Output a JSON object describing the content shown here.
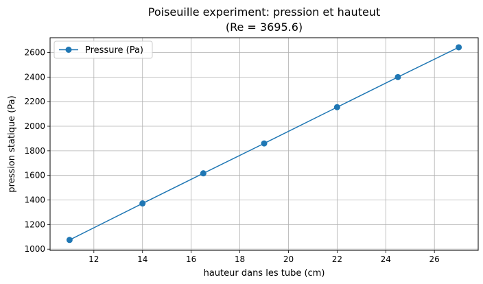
{
  "chart_data": {
    "type": "line",
    "title": "Poiseuille experiment: pression et hauteut",
    "subtitle": "(Re = 3695.6)",
    "xlabel": "hauteur dans les tube (cm)",
    "ylabel": "pression statique (Pa)",
    "xlim": [
      10.2,
      27.8
    ],
    "ylim": [
      990,
      2720
    ],
    "xticks": [
      12,
      14,
      16,
      18,
      20,
      22,
      24,
      26
    ],
    "yticks": [
      1000,
      1200,
      1400,
      1600,
      1800,
      2000,
      2200,
      2400,
      2600
    ],
    "grid": true,
    "legend_position": "top-left",
    "series": [
      {
        "name": "Pressure (Pa)",
        "color": "#1f77b4",
        "marker": "circle",
        "x": [
          11,
          14,
          16.5,
          19,
          22,
          24.5,
          27
        ],
        "y": [
          1075,
          1372,
          1617,
          1860,
          2155,
          2400,
          2642
        ]
      }
    ]
  }
}
